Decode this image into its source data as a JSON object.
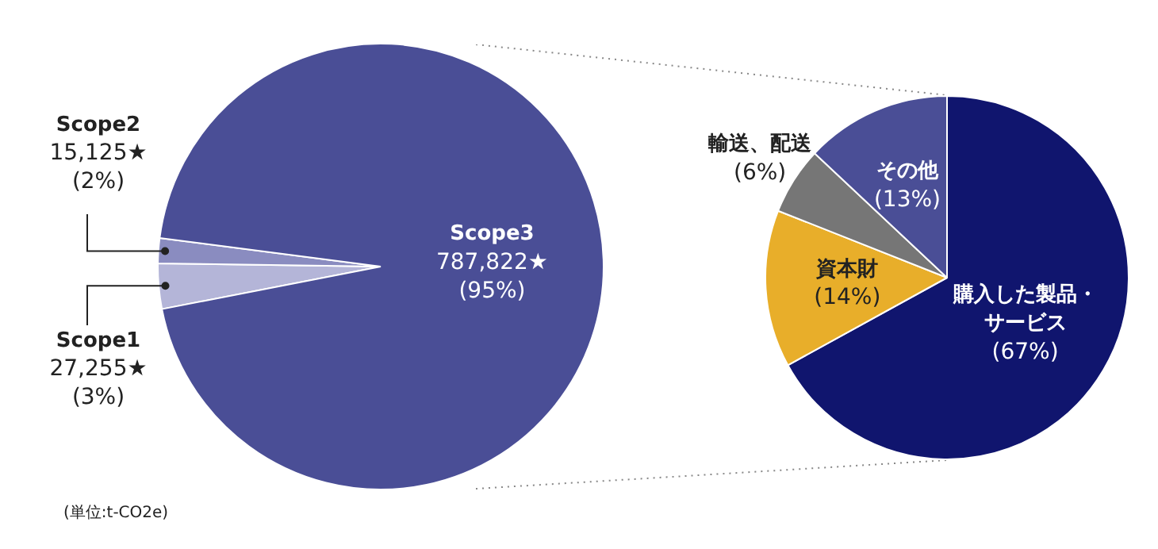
{
  "chart_data": [
    {
      "type": "pie",
      "categories": [
        "Scope1",
        "Scope2",
        "Scope3"
      ],
      "values": [
        27255,
        15125,
        787822
      ],
      "colors": [
        "#b4b5d8",
        "#8a8cc0",
        "#4a4e96"
      ],
      "value_labels": [
        "27,255★\n(3%)",
        "15,125★\n(2%)",
        "787,822★\n(95%)"
      ],
      "annotations": [
        "(単位:t-CO2e)"
      ]
    },
    {
      "type": "pie",
      "categories": [
        "購入した製品・サービス",
        "資本財",
        "輸送、配送",
        "その他"
      ],
      "values": [
        67,
        14,
        6,
        13
      ],
      "colors": [
        "#10156e",
        "#e8ae2a",
        "#767676",
        "#4a4e96"
      ],
      "value_labels": [
        "(67%)",
        "(14%)",
        "(6%)",
        "(13%)"
      ]
    }
  ]
}
